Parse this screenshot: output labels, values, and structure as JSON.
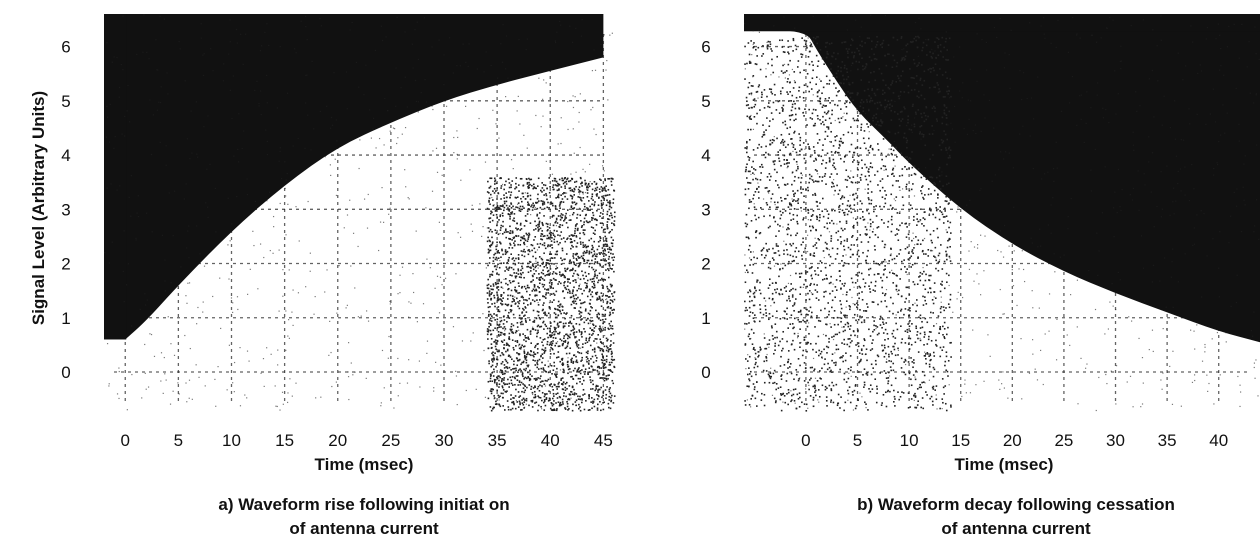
{
  "chart_data": [
    {
      "type": "area",
      "xlabel": "Time (msec)",
      "ylabel": "Signal Level (Arbitrary Units)",
      "caption_line1": "a)  Waveform rise following initiat on",
      "caption_line2": "of antenna current",
      "x_ticks": [
        "0",
        "5",
        "10",
        "15",
        "20",
        "25",
        "30",
        "35",
        "40",
        "45"
      ],
      "y_ticks": [
        "6",
        "5",
        "4",
        "3",
        "2",
        "1",
        "0"
      ],
      "xlim": [
        -2,
        46
      ],
      "ylim": [
        -0.7,
        6.6
      ],
      "grid": true,
      "series": [
        {
          "x": [
            0,
            2,
            5,
            10,
            15,
            20,
            25,
            30,
            35,
            40,
            45
          ],
          "y": [
            0.6,
            0.95,
            1.6,
            2.6,
            3.45,
            4.15,
            4.6,
            5.0,
            5.3,
            5.55,
            5.8
          ]
        }
      ]
    },
    {
      "type": "area",
      "xlabel": "Time (msec)",
      "ylabel": "",
      "caption_line1": "b)  Waveform decay following cessation",
      "caption_line2": "of antenna current",
      "x_ticks": [
        "0",
        "5",
        "10",
        "15",
        "20",
        "25",
        "30",
        "35",
        "40"
      ],
      "y_ticks": [
        "6",
        "5",
        "4",
        "3",
        "2",
        "1",
        "0"
      ],
      "xlim": [
        -6,
        44
      ],
      "ylim": [
        -0.7,
        6.6
      ],
      "grid": true,
      "series": [
        {
          "x": [
            -6,
            0,
            1,
            3,
            5,
            8,
            10,
            15,
            20,
            25,
            30,
            35,
            40,
            44
          ],
          "y": [
            6.3,
            6.3,
            5.95,
            5.35,
            4.8,
            4.25,
            3.85,
            3.0,
            2.35,
            1.85,
            1.45,
            1.1,
            0.75,
            0.55
          ]
        }
      ]
    }
  ]
}
